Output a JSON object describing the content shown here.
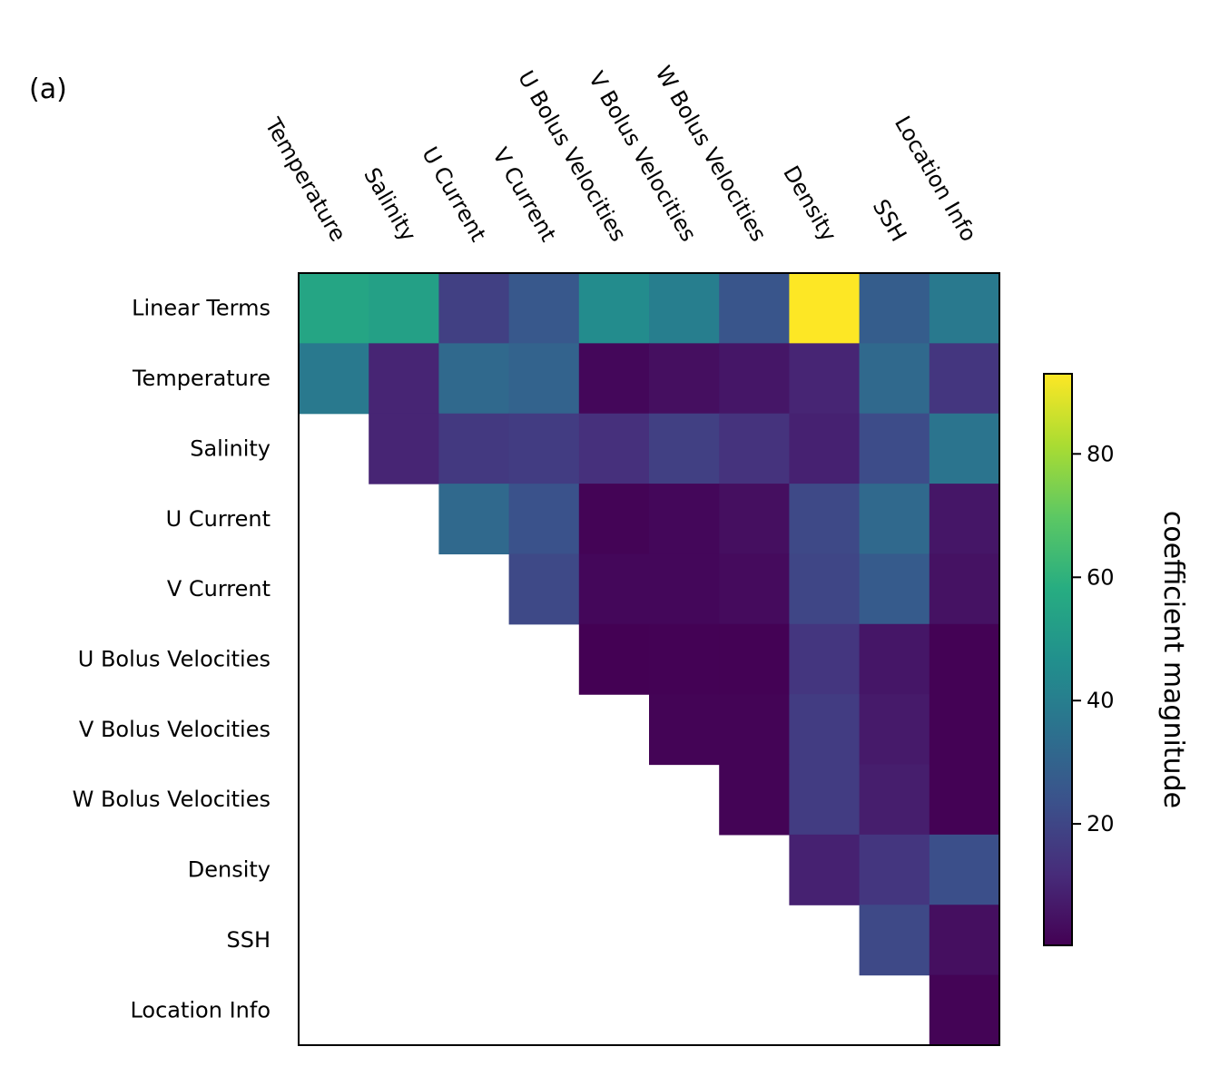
{
  "panel_label": "(a)",
  "chart_data": {
    "type": "heatmap",
    "columns": [
      "Temperature",
      "Salinity",
      "U Current",
      "V Current",
      "U Bolus Velocities",
      "V Bolus Velocities",
      "W Bolus Velocities",
      "Density",
      "SSH",
      "Location Info"
    ],
    "rows": [
      "Linear Terms",
      "Temperature",
      "Salinity",
      "U Current",
      "V Current",
      "U Bolus Velocities",
      "V Bolus Velocities",
      "W Bolus Velocities",
      "Density",
      "SSH",
      "Location Info"
    ],
    "values": [
      [
        55,
        53,
        18,
        26,
        45,
        40,
        25,
        93,
        28,
        38
      ],
      [
        38,
        10,
        32,
        30,
        2,
        4,
        6,
        10,
        32,
        15
      ],
      [
        null,
        10,
        16,
        17,
        13,
        18,
        14,
        9,
        22,
        36
      ],
      [
        null,
        null,
        32,
        24,
        1,
        2,
        4,
        21,
        32,
        6
      ],
      [
        null,
        null,
        null,
        21,
        2,
        2,
        3,
        20,
        27,
        5
      ],
      [
        null,
        null,
        null,
        null,
        0.3,
        0.5,
        0.5,
        15,
        6,
        0.5
      ],
      [
        null,
        null,
        null,
        null,
        null,
        1,
        1,
        17,
        7,
        0.5
      ],
      [
        null,
        null,
        null,
        null,
        null,
        null,
        1,
        17,
        8,
        0.5
      ],
      [
        null,
        null,
        null,
        null,
        null,
        null,
        null,
        9,
        15,
        23
      ],
      [
        null,
        null,
        null,
        null,
        null,
        null,
        null,
        null,
        21,
        4
      ],
      [
        null,
        null,
        null,
        null,
        null,
        null,
        null,
        null,
        null,
        1
      ]
    ],
    "colormap": "viridis",
    "colorbar": {
      "label": "coefficient magnitude",
      "range": [
        0.3,
        93
      ],
      "ticks": [
        20,
        40,
        60,
        80
      ],
      "tick_labels": [
        "20",
        "40",
        "60",
        "80"
      ]
    }
  }
}
